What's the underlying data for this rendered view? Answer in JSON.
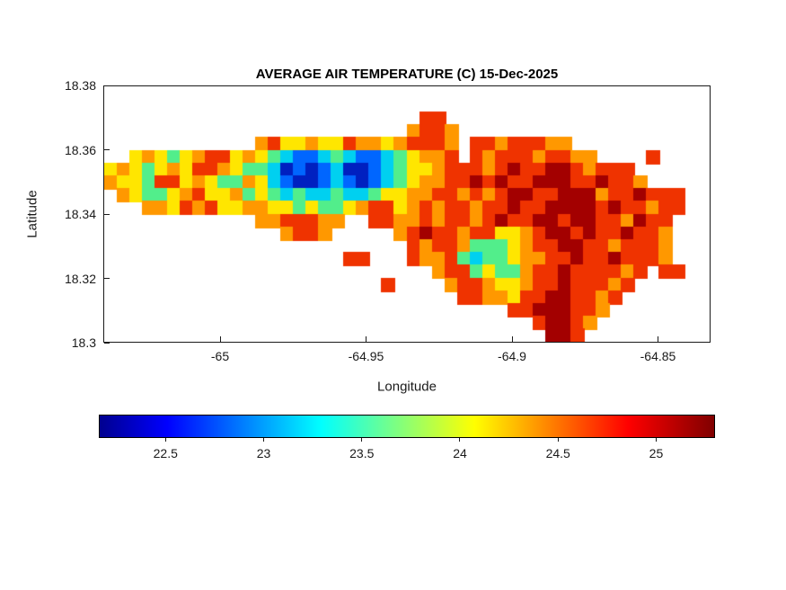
{
  "title": "AVERAGE AIR TEMPERATURE (C) 15-Dec-2025",
  "chart_data": {
    "type": "heatmap",
    "title": "AVERAGE AIR TEMPERATURE (C) 15-Dec-2025",
    "xlabel": "Longitude",
    "ylabel": "Latitude",
    "xlim": [
      -65.04,
      -64.832
    ],
    "ylim": [
      18.3,
      18.38
    ],
    "xticks": [
      -65,
      -64.95,
      -64.9,
      -64.85
    ],
    "xtick_labels": [
      "-65",
      "-64.95",
      "-64.9",
      "-64.85"
    ],
    "yticks": [
      18.38,
      18.36,
      18.34,
      18.32,
      18.3
    ],
    "ytick_labels": [
      "18.38",
      "18.36",
      "18.34",
      "18.32",
      "18.3"
    ],
    "grid_on": false,
    "legend": "none",
    "colorbar": {
      "orientation": "horizontal",
      "colormap": "jet",
      "min": 22.16,
      "max": 25.3,
      "ticks": [
        22.5,
        23,
        23.5,
        24,
        24.5,
        25
      ],
      "tick_labels": [
        "22.5",
        "23",
        "23.5",
        "24",
        "24.5",
        "25"
      ]
    },
    "grid": {
      "note": "coarse raster of island air temperature; letter = temperature class, '.' = sea / no data",
      "palette": {
        "B": {
          "color": "#0020C0",
          "temp_c": 22.3
        },
        "b": {
          "color": "#0066FF",
          "temp_c": 22.7
        },
        "c": {
          "color": "#00D0F0",
          "temp_c": 23.2
        },
        "g": {
          "color": "#52EE8B",
          "temp_c": 23.6
        },
        "y": {
          "color": "#FFE600",
          "temp_c": 24.0
        },
        "o": {
          "color": "#FF9800",
          "temp_c": 24.4
        },
        "r": {
          "color": "#EF3300",
          "temp_c": 24.8
        },
        "R": {
          "color": "#A30000",
          "temp_c": 25.2
        }
      },
      "rows": [
        "................................................",
        "................................................",
        ".........................rr.....................",
        "........................orro....................",
        "............oryyoyyrooyorrro.rrorrroo...........",
        "..yoygyorryoygcbbcgcbbcgyoor.rorrrorroo....r....",
        "yoygyoyrroyggcBbBbcBBbcgyyorrrorRrrRRrorrr......",
        "oyygrryoyggoycbBBbcbBbcgyoorrRrRrrRRRrrRrro.....",
        ".oyggyoryyogygcgccgccgyyoorrororRRrrRRRorrRrrr..",
        "...ooyroryyooyygyggyorryororrorrRrrRRRRrRrrorr..",
        "............oorrroo..rroororrorRrrRRrRRrroRrr...",
        "..............orro.....orRrrorryyorRRrRrrRrro...",
        "........................rorrogggyorrRRrrorrro...",
        "...................rr...roorgcggyoorrRrrRrrro...",
        "..........................orrgyggorrRrrrror.rr..",
        "......................r....orroyyorrRrrror......",
        "............................rrooyrrRRrror.......",
        "................................rrRRRrro........",
        "..................................rRRro.........",
        "...................................RRr.........."
      ]
    }
  }
}
